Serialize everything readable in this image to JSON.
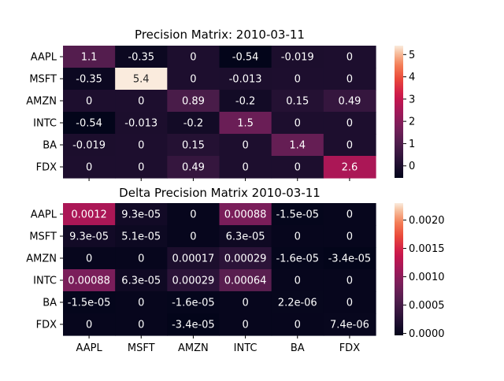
{
  "chart_data": [
    {
      "type": "heatmap",
      "title": "Precision Matrix: 2010-03-11",
      "rows": [
        "AAPL",
        "MSFT",
        "AMZN",
        "INTC",
        "BA",
        "FDX"
      ],
      "columns": [
        "AAPL",
        "MSFT",
        "AMZN",
        "INTC",
        "BA",
        "FDX"
      ],
      "values": [
        [
          1.1,
          -0.35,
          0,
          -0.54,
          -0.019,
          0
        ],
        [
          -0.35,
          5.4,
          0,
          -0.013,
          0,
          0
        ],
        [
          0,
          0,
          0.89,
          -0.2,
          0.15,
          0.49
        ],
        [
          -0.54,
          -0.013,
          -0.2,
          1.5,
          0,
          0
        ],
        [
          -0.019,
          0,
          0.15,
          0,
          1.4,
          0
        ],
        [
          0,
          0,
          0.49,
          0,
          0,
          2.6
        ]
      ],
      "labels": [
        [
          "1.1",
          "-0.35",
          "0",
          "-0.54",
          "-0.019",
          "0"
        ],
        [
          "-0.35",
          "5.4",
          "0",
          "-0.013",
          "0",
          "0"
        ],
        [
          "0",
          "0",
          "0.89",
          "-0.2",
          "0.15",
          "0.49"
        ],
        [
          "-0.54",
          "-0.013",
          "-0.2",
          "1.5",
          "0",
          "0"
        ],
        [
          "-0.019",
          "0",
          "0.15",
          "0",
          "1.4",
          "0"
        ],
        [
          "0",
          "0",
          "0.49",
          "0",
          "0",
          "2.6"
        ]
      ],
      "show_x_tick_labels": false,
      "colorbar": {
        "vmin": -0.54,
        "vmax": 5.4,
        "ticks": [
          0,
          1,
          2,
          3,
          4,
          5
        ],
        "tick_labels": [
          "0",
          "1",
          "2",
          "3",
          "4",
          "5"
        ]
      },
      "colormap": "rocket"
    },
    {
      "type": "heatmap",
      "title": "Delta Precision Matrix 2010-03-11",
      "rows": [
        "AAPL",
        "MSFT",
        "AMZN",
        "INTC",
        "BA",
        "FDX"
      ],
      "columns": [
        "AAPL",
        "MSFT",
        "AMZN",
        "INTC",
        "BA",
        "FDX"
      ],
      "values": [
        [
          0.0012,
          9.3e-05,
          0,
          0.00088,
          -1.5e-05,
          0
        ],
        [
          9.3e-05,
          5.1e-05,
          0,
          6.3e-05,
          0,
          0
        ],
        [
          0,
          0,
          0.00017,
          0.00029,
          -1.6e-05,
          -3.4e-05
        ],
        [
          0.00088,
          6.3e-05,
          0.00029,
          0.00064,
          0,
          0
        ],
        [
          -1.5e-05,
          0,
          -1.6e-05,
          0,
          2.2e-06,
          0
        ],
        [
          0,
          0,
          -3.4e-05,
          0,
          0,
          7.4e-06
        ]
      ],
      "labels": [
        [
          "0.0012",
          "9.3e-05",
          "0",
          "0.00088",
          "-1.5e-05",
          "0"
        ],
        [
          "9.3e-05",
          "5.1e-05",
          "0",
          "6.3e-05",
          "0",
          "0"
        ],
        [
          "0",
          "0",
          "0.00017",
          "0.00029",
          "-1.6e-05",
          "-3.4e-05"
        ],
        [
          "0.00088",
          "6.3e-05",
          "0.00029",
          "0.00064",
          "0",
          "0"
        ],
        [
          "-1.5e-05",
          "0",
          "-1.6e-05",
          "0",
          "2.2e-06",
          "0"
        ],
        [
          "0",
          "0",
          "-3.4e-05",
          "0",
          "0",
          "7.4e-06"
        ]
      ],
      "show_x_tick_labels": true,
      "colorbar": {
        "vmin": -3.4e-05,
        "vmax": 0.0023,
        "ticks": [
          0,
          0.0005,
          0.001,
          0.0015,
          0.002
        ],
        "tick_labels": [
          "0.0000",
          "0.0005",
          "0.0010",
          "0.0015",
          "0.0020"
        ]
      },
      "colormap": "rocket"
    }
  ]
}
